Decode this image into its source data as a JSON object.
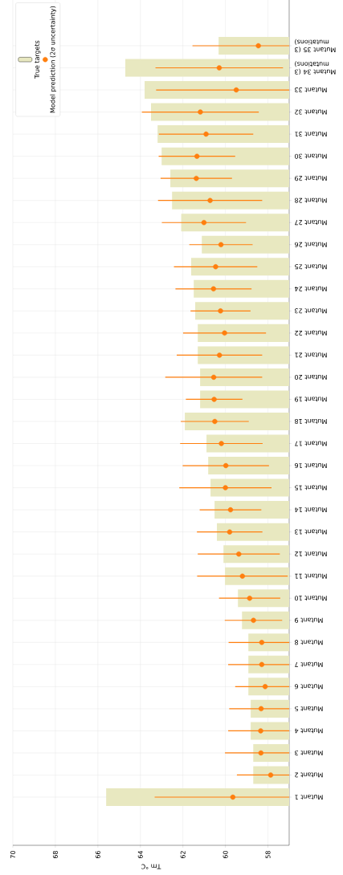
{
  "chart_data": {
    "type": "bar",
    "orientation": "horizontal",
    "categories": [
      "Mutant 35 (3 mutations)",
      "Mutant 34 (3 mutations)",
      "Mutant 33",
      "Mutant 32",
      "Mutant 31",
      "Mutant 30",
      "Mutant 29",
      "Mutant 28",
      "Mutant 27",
      "Mutant 26",
      "Mutant 25",
      "Mutant 24",
      "Mutant 23",
      "Mutant 22",
      "Mutant 21",
      "Mutant 20",
      "Mutant 19",
      "Mutant 18",
      "Mutant 17",
      "Mutant 16",
      "Mutant 15",
      "Mutant 14",
      "Mutant 13",
      "Mutant 12",
      "Mutant 11",
      "Mutant 10",
      "Mutant 9",
      "Mutant 8",
      "Mutant 7",
      "Mutant 6",
      "Mutant 5",
      "Mutant 4",
      "Mutant 3",
      "Mutant 2",
      "Mutant 1"
    ],
    "series": [
      {
        "name": "True targets",
        "color": "#e8e8c0",
        "values": [
          60.32,
          64.71,
          63.8,
          63.5,
          63.19,
          63.0,
          62.59,
          62.51,
          62.08,
          61.11,
          61.61,
          61.49,
          61.42,
          61.3,
          61.3,
          61.19,
          61.19,
          61.91,
          60.89,
          60.81,
          60.7,
          60.51,
          60.4,
          60.09,
          60.02,
          59.41,
          59.22,
          58.92,
          58.92,
          58.92,
          58.81,
          58.81,
          58.69,
          58.69,
          65.61
        ]
      },
      {
        "name": "Model prediction (2σ uncertainty)",
        "type": "scatter",
        "color": "#ff7f0e",
        "values": [
          58.45,
          60.29,
          59.49,
          61.18,
          60.91,
          61.34,
          61.37,
          60.72,
          61.01,
          60.21,
          60.46,
          60.56,
          60.23,
          60.04,
          60.28,
          60.55,
          60.53,
          60.5,
          60.19,
          59.98,
          60.0,
          59.76,
          59.8,
          59.37,
          59.2,
          58.86,
          58.68,
          58.29,
          58.29,
          58.13,
          58.32,
          58.34,
          58.33,
          57.87,
          59.65
        ],
        "errors": [
          [
            57.0,
            61.55
          ],
          3.0,
          [
            57.0,
            63.26
          ],
          2.75,
          2.22,
          1.8,
          1.68,
          2.45,
          1.98,
          1.49,
          1.96,
          1.79,
          1.41,
          1.95,
          2.01,
          2.28,
          1.33,
          1.6,
          1.94,
          2.03,
          2.17,
          1.45,
          1.54,
          1.93,
          2.13,
          1.44,
          1.35,
          [
            57.0,
            59.85
          ],
          [
            57.0,
            59.87
          ],
          [
            57.0,
            59.54
          ],
          [
            57.0,
            59.82
          ],
          [
            57.0,
            59.87
          ],
          [
            57.0,
            60.02
          ],
          [
            57.0,
            59.46
          ],
          [
            57.0,
            63.33
          ]
        ]
      }
    ],
    "xlabel": "Tm °C",
    "xlim": [
      70,
      57
    ],
    "xticks": [
      70,
      68,
      66,
      64,
      62,
      60,
      58
    ],
    "marker": "circle",
    "grid": true,
    "legend": "top left"
  }
}
